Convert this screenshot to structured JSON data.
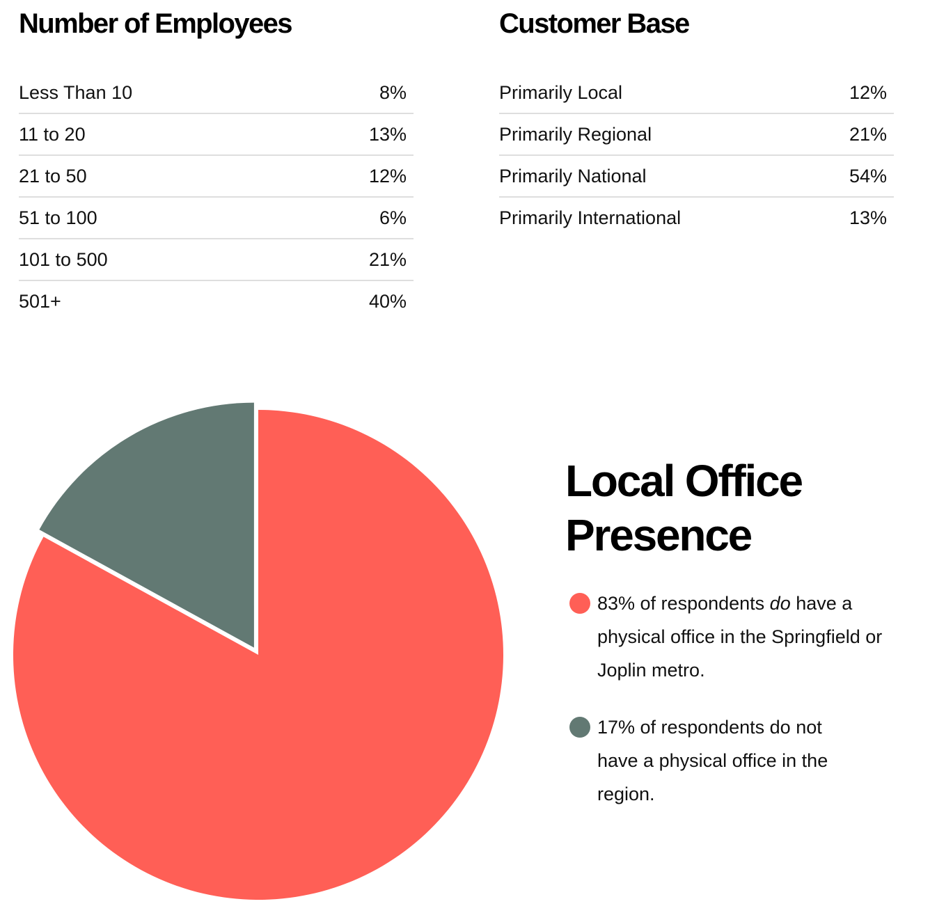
{
  "employees": {
    "title": "Number of Employees",
    "rows": [
      {
        "label": "Less Than 10",
        "value": "8%"
      },
      {
        "label": "11 to 20",
        "value": "13%"
      },
      {
        "label": "21 to 50",
        "value": "12%"
      },
      {
        "label": "51 to 100",
        "value": "6%"
      },
      {
        "label": "101 to 500",
        "value": "21%"
      },
      {
        "label": "501+",
        "value": "40%"
      }
    ]
  },
  "customer_base": {
    "title": "Customer Base",
    "rows": [
      {
        "label": "Primarily Local",
        "value": "12%"
      },
      {
        "label": "Primarily Regional",
        "value": "21%"
      },
      {
        "label": "Primarily National",
        "value": "54%"
      },
      {
        "label": "Primarily International",
        "value": "13%"
      }
    ]
  },
  "local_office": {
    "title": "Local Office Presence",
    "legend": [
      {
        "color": "#ff5f56",
        "text_before": "83% of respondents ",
        "text_em": "do",
        "text_after": " have a physical office in the Springfield or Joplin metro."
      },
      {
        "color": "#627973",
        "text_before": "17% of respondents do not have a physical office in the region.",
        "text_em": "",
        "text_after": ""
      }
    ]
  },
  "chart_data": {
    "type": "pie",
    "title": "Local Office Presence",
    "slices": [
      {
        "label": "Have a physical office in the Springfield or Joplin metro",
        "value": 83,
        "color": "#ff5f56",
        "exploded": false
      },
      {
        "label": "Do not have a physical office in the region",
        "value": 17,
        "color": "#627973",
        "exploded": true
      }
    ],
    "start": "12 o'clock",
    "direction": "clockwise"
  }
}
